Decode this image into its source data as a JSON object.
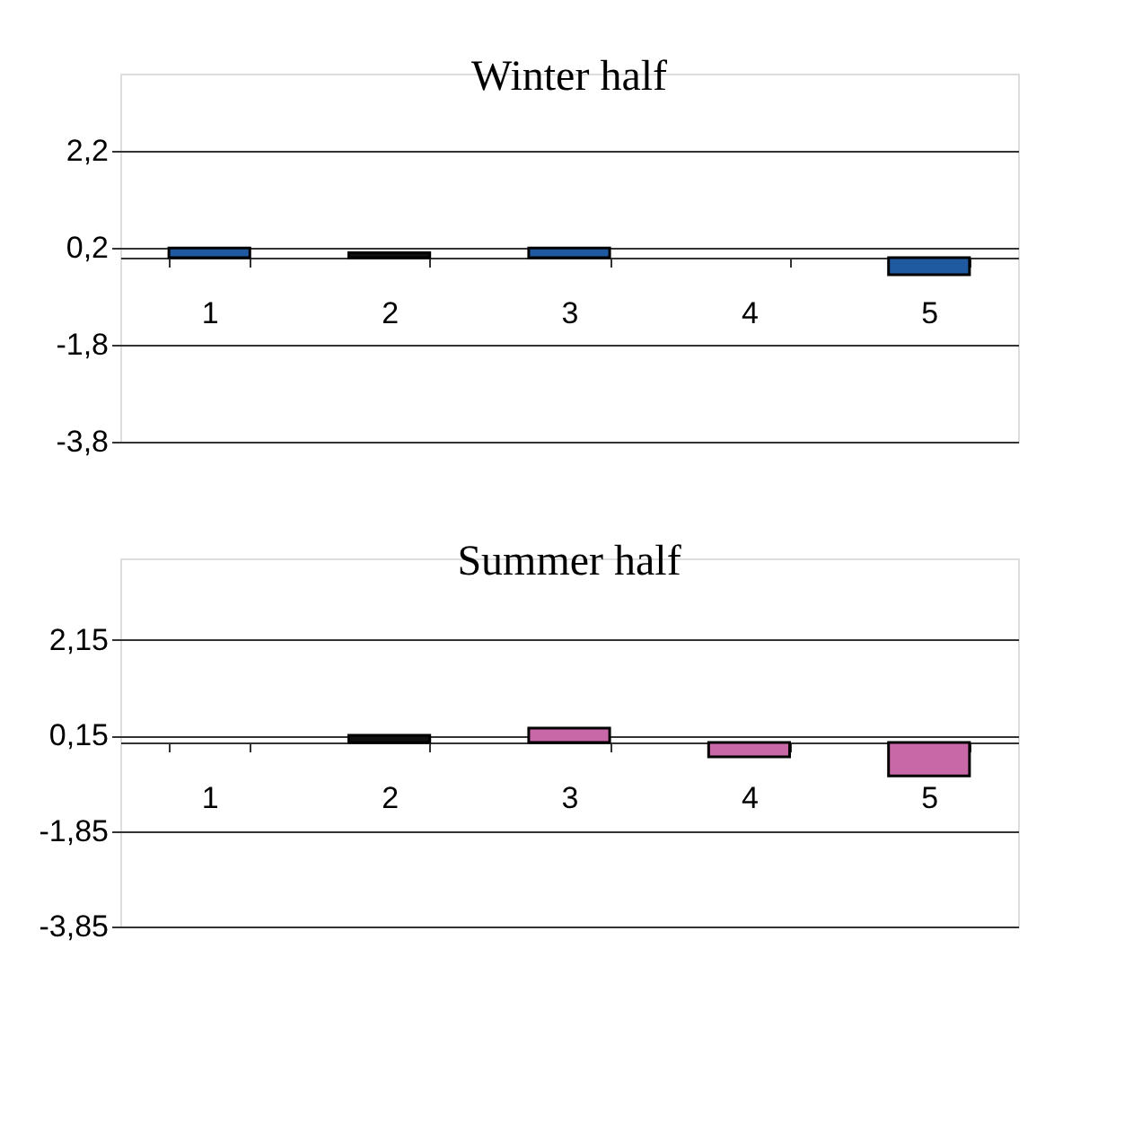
{
  "chart_data": [
    {
      "type": "bar",
      "title": "Winter half",
      "categories": [
        "1",
        "2",
        "3",
        "4",
        "5"
      ],
      "values": [
        0.2,
        0.1,
        0.2,
        null,
        -0.35
      ],
      "colors": [
        "#1f5aa0",
        "#111111",
        "#1f5aa0",
        "#1f5aa0",
        "#1f5aa0"
      ],
      "ylim": [
        -3.8,
        3.8
      ],
      "yticks": [
        {
          "value": -3.8,
          "label": "-3,8"
        },
        {
          "value": -1.8,
          "label": "-1,8"
        },
        {
          "value": 0.2,
          "label": "0,2"
        },
        {
          "value": 2.2,
          "label": "2,2"
        }
      ],
      "grid": "y"
    },
    {
      "type": "bar",
      "title": "Summer half",
      "categories": [
        "1",
        "2",
        "3",
        "4",
        "5"
      ],
      "values": [
        null,
        0.15,
        0.3,
        -0.3,
        -0.7
      ],
      "colors": [
        "#c868a6",
        "#111111",
        "#c868a6",
        "#c868a6",
        "#c868a6"
      ],
      "ylim": [
        -3.85,
        3.85
      ],
      "yticks": [
        {
          "value": -3.85,
          "label": "-3,85"
        },
        {
          "value": -1.85,
          "label": "-1,85"
        },
        {
          "value": 0.15,
          "label": "0,15"
        },
        {
          "value": 2.15,
          "label": "2,15"
        }
      ],
      "grid": "y"
    }
  ]
}
